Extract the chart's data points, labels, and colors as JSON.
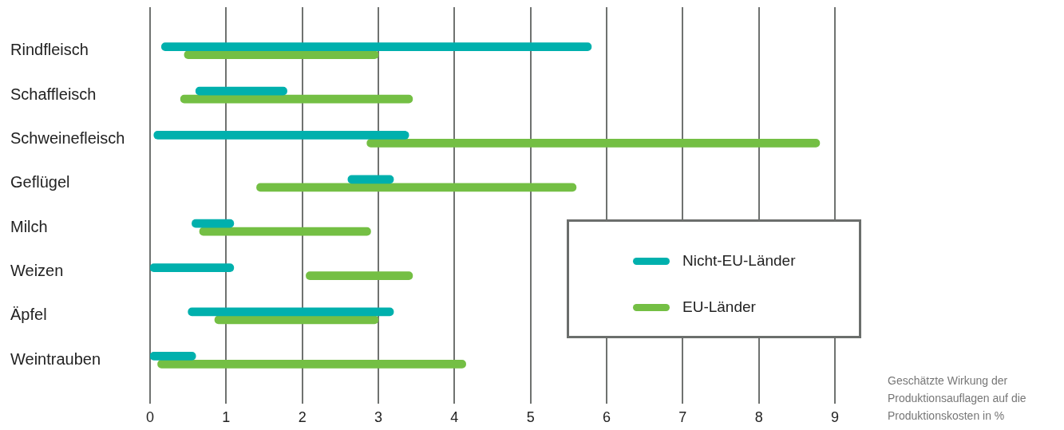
{
  "chart_data": {
    "type": "bar",
    "orientation": "horizontal",
    "xlabel": "Geschätzte Wirkung der Produktionsauflagen auf die Produktionskosten in %",
    "categories": [
      "Rindfleisch",
      "Schaffleisch",
      "Schweinefleisch",
      "Geflügel",
      "Milch",
      "Weizen",
      "Äpfel",
      "Weintrauben"
    ],
    "series": [
      {
        "name": "Nicht-EU-Länder",
        "color": "#00b0ad",
        "base": [
          0.15,
          0.6,
          0.05,
          2.6,
          0.55,
          0,
          0.5,
          0
        ],
        "values": [
          5.65,
          1.2,
          3.35,
          0.6,
          0.55,
          1.1,
          2.7,
          0.6
        ]
      },
      {
        "name": "EU-Länder",
        "color": "#74bf44",
        "base": [
          0.45,
          0.4,
          2.85,
          1.4,
          0.65,
          2.05,
          0.85,
          0.1
        ],
        "values": [
          2.55,
          3.05,
          5.95,
          4.2,
          2.25,
          1.4,
          2.15,
          4.05
        ]
      }
    ],
    "xlim": [
      0,
      9
    ],
    "xticks": [
      0,
      1,
      2,
      3,
      4,
      5,
      6,
      7,
      8,
      9
    ],
    "grid": "x",
    "legend": "right"
  }
}
